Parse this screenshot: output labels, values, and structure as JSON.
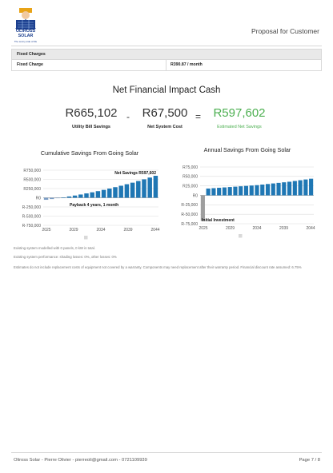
{
  "header": {
    "logo_name": "OLIROSS SOLAR",
    "logo_tagline": "The sunny side of life",
    "proposal_title": "Proposal for Customer"
  },
  "fixed_charges": {
    "heading": "Fixed Charges",
    "row_label": "Fixed Charge",
    "row_value": "R390.87 / month"
  },
  "impact": {
    "title": "Net Financial Impact Cash",
    "utility_value": "R665,102",
    "utility_label": "Utility Bill Savings",
    "minus": "-",
    "system_value": "R67,500",
    "system_label": "Net System Cost",
    "equals": "=",
    "savings_value": "R597,602",
    "savings_label": "Estimated Net Savings",
    "savings_color": "#4caf50"
  },
  "colors": {
    "bar": "#1f77b4",
    "legend_swatch": "#d9d9d9"
  },
  "chart_data": [
    {
      "type": "bar",
      "title": "Cumulative Savings From Going Solar",
      "y_ticks": [
        "R750,000",
        "R500,000",
        "R250,000",
        "R0",
        "R-250,000",
        "R-500,000",
        "R-750,000"
      ],
      "x_ticks": [
        "2025",
        "2029",
        "2034",
        "2039",
        "2044"
      ],
      "ylim": [
        -750000,
        750000
      ],
      "categories": [
        "2025",
        "2026",
        "2027",
        "2028",
        "2029",
        "2030",
        "2031",
        "2032",
        "2033",
        "2034",
        "2035",
        "2036",
        "2037",
        "2038",
        "2039",
        "2040",
        "2041",
        "2042",
        "2043",
        "2044"
      ],
      "values": [
        -55000,
        -35000,
        -12000,
        10000,
        35000,
        60000,
        88000,
        118000,
        148000,
        180000,
        214000,
        250000,
        288000,
        327000,
        368000,
        410000,
        455000,
        501000,
        549000,
        597602
      ],
      "annotations": [
        "Net Savings R597,602",
        "Payback 4 years, 1 month"
      ],
      "grid": true
    },
    {
      "type": "bar",
      "title": "Annual Savings From Going Solar",
      "y_ticks": [
        "R75,000",
        "R50,000",
        "R25,000",
        "R0",
        "R-25,000",
        "R-50,000",
        "R-75,000"
      ],
      "x_ticks": [
        "2025",
        "2029",
        "2034",
        "2039",
        "2044"
      ],
      "ylim": [
        -75000,
        75000
      ],
      "categories": [
        "2025",
        "2025a",
        "2026",
        "2027",
        "2028",
        "2029",
        "2030",
        "2031",
        "2032",
        "2033",
        "2034",
        "2035",
        "2036",
        "2037",
        "2038",
        "2039",
        "2040",
        "2041",
        "2042",
        "2043",
        "2044"
      ],
      "values": [
        -67500,
        18000,
        19000,
        20000,
        21000,
        22000,
        23000,
        24000,
        25000,
        26000,
        27000,
        28500,
        30000,
        31500,
        33000,
        34500,
        36000,
        38000,
        40000,
        42000,
        44000
      ],
      "annotations": [
        "Initial Investment"
      ],
      "grid": true
    }
  ],
  "notes": {
    "line1": "Existing system modelled with 0 panels, 0 kW in total.",
    "line2": "Existing system performance: shading losses: 0%, other losses: 0%",
    "line3": "Estimates do not include replacement costs of equipment not covered by a warranty. Components may need replacement after their warranty period. Financial discount rate assumed: 6.75%"
  },
  "footer": {
    "contact": "Oliross Solar - Pierre Olivier - pierreoli@gmail.com - 0721109939",
    "page": "Page 7 / 8"
  }
}
